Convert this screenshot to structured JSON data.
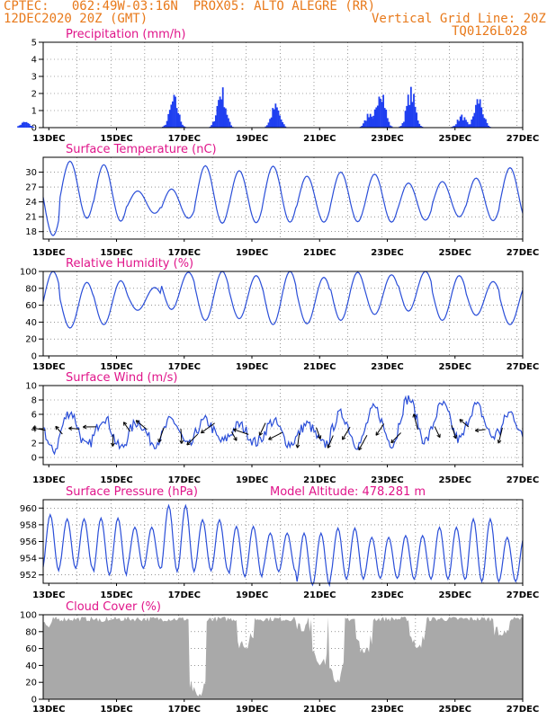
{
  "header": {
    "line1_left": "CPTEC:   062:49W-03:16N  PROX05: ALTO ALEGRE (RR)",
    "line2_left": "12DEC2020 20Z (GMT)",
    "line2_right": "Vertical Grid Line: 20Z",
    "line3_right": "TQ0126L028"
  },
  "x_ticks": [
    "13DEC",
    "15DEC",
    "17DEC",
    "19DEC",
    "21DEC",
    "23DEC",
    "25DEC",
    "27DEC"
  ],
  "chart_data": [
    {
      "type": "bar",
      "title": "Precipitation (mm/h)",
      "ylim": [
        0,
        5
      ],
      "yticks": [
        0,
        1,
        2,
        3,
        4,
        5
      ],
      "color": "#1f3ff0",
      "peaks": [
        {
          "day": 12.3,
          "value": 0.4
        },
        {
          "day": 16.7,
          "value": 2.0
        },
        {
          "day": 18.1,
          "value": 2.6
        },
        {
          "day": 19.7,
          "value": 1.5
        },
        {
          "day": 22.5,
          "value": 1.1
        },
        {
          "day": 22.8,
          "value": 2.9
        },
        {
          "day": 23.7,
          "value": 2.5
        },
        {
          "day": 25.2,
          "value": 0.8
        },
        {
          "day": 25.7,
          "value": 2.0
        }
      ]
    },
    {
      "type": "line",
      "title": "Surface Temperature (nC)",
      "ylim": [
        16.5,
        33
      ],
      "yticks": [
        18,
        21,
        24,
        27,
        30
      ],
      "color": "#2a4ed8",
      "daily_max": [
        29.5,
        32.2,
        31.5,
        26.2,
        26.6,
        31.3,
        30.3,
        31.2,
        29.2,
        30.0,
        29.6,
        27.8,
        28.1,
        28.8,
        30.9
      ],
      "daily_min": [
        17.2,
        20.7,
        20.1,
        21.7,
        20.7,
        19.7,
        19.8,
        19.9,
        19.9,
        20.0,
        19.9,
        20.3,
        21.0,
        20.2,
        20.1
      ]
    },
    {
      "type": "line",
      "title": "Relative Humidity (%)",
      "ylim": [
        0,
        100
      ],
      "yticks": [
        0,
        20,
        40,
        60,
        80,
        100
      ],
      "color": "#2a4ed8",
      "daily_max": [
        100,
        87,
        89,
        81,
        99,
        100,
        95,
        100,
        93,
        99,
        96,
        100,
        95,
        88,
        85
      ],
      "daily_min": [
        43,
        33,
        37,
        54,
        55,
        42,
        44,
        37,
        38,
        42,
        49,
        53,
        42,
        48,
        37
      ]
    },
    {
      "type": "line",
      "title": "Surface Wind (m/s)",
      "ylim": [
        -1,
        10
      ],
      "yticks": [
        0,
        2,
        4,
        6,
        8,
        10
      ],
      "color": "#2a4ed8",
      "daily_max": [
        6.8,
        6.3,
        5.6,
        4.9,
        5.2,
        5.1,
        4.5,
        5.0,
        4.6,
        6.0,
        6.8,
        8.2,
        7.3,
        7.2,
        6.2
      ],
      "daily_min": [
        0.9,
        1.5,
        1.3,
        2.0,
        1.6,
        2.2,
        2.1,
        1.9,
        1.8,
        1.8,
        2.0,
        2.3,
        2.5,
        2.9,
        2.0
      ]
    },
    {
      "type": "line",
      "title": "Surface Pressure (hPa)",
      "annotation": "Model Altitude: 478.281  m",
      "ylim": [
        951,
        961
      ],
      "yticks": [
        952,
        954,
        956,
        958,
        960
      ],
      "color": "#2a4ed8",
      "daily_max": [
        959.2,
        958.7,
        958.8,
        957.7,
        960.3,
        958.6,
        957.8,
        957.0,
        957.0,
        957.6,
        956.5,
        956.7,
        957.7,
        958.7,
        956.5
      ],
      "daily_min": [
        952.5,
        952.8,
        952.0,
        952.8,
        952.4,
        952.5,
        951.8,
        952.4,
        950.8,
        951.5,
        951.6,
        951.5,
        951.5,
        951.2,
        951.2
      ]
    },
    {
      "type": "area",
      "title": "Cloud Cover (%)",
      "ylim": [
        0,
        100
      ],
      "yticks": [
        0,
        20,
        40,
        60,
        80,
        100
      ],
      "color": "#a9a9a9",
      "typical_value": 95,
      "dips": [
        {
          "day": 13.0,
          "value": 85
        },
        {
          "day": 14.6,
          "value": 90
        },
        {
          "day": 17.4,
          "value": 2
        },
        {
          "day": 18.8,
          "value": 60
        },
        {
          "day": 20.5,
          "value": 80
        },
        {
          "day": 21.0,
          "value": 40
        },
        {
          "day": 21.5,
          "value": 20
        },
        {
          "day": 22.3,
          "value": 55
        },
        {
          "day": 23.9,
          "value": 60
        },
        {
          "day": 26.4,
          "value": 75
        }
      ]
    }
  ]
}
